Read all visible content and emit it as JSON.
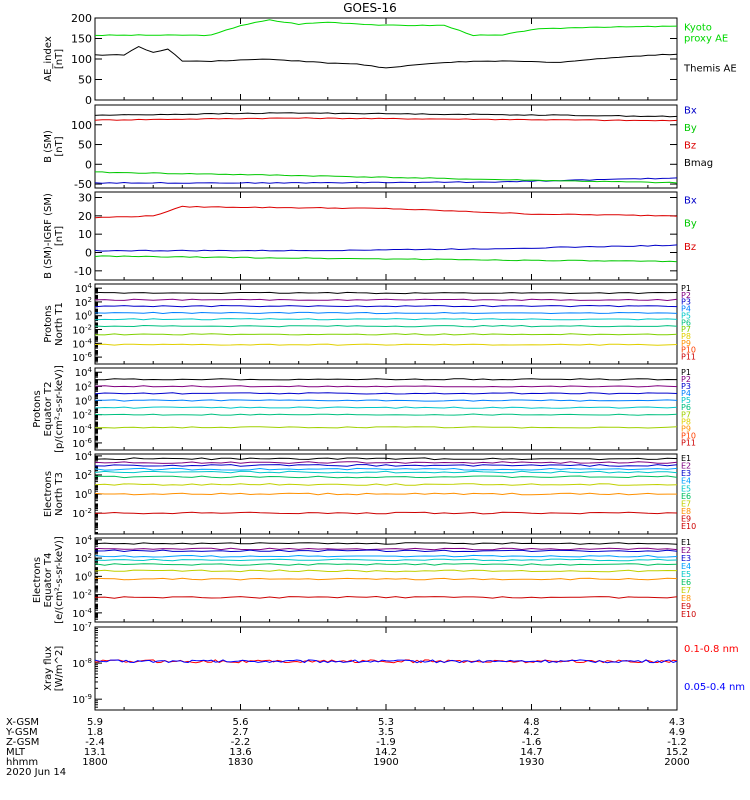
{
  "title": "GOES-16",
  "chart_data": [
    {
      "type": "line",
      "ylabel": [
        "AE_index",
        "[nT]"
      ],
      "ylim": [
        0,
        200
      ],
      "yticks": [
        "0",
        "50",
        "100",
        "150",
        "200"
      ],
      "series": [
        {
          "name": "Kyoto proxy AE",
          "label_lines": [
            "Kyoto",
            "proxy AE"
          ],
          "color": "#00d800",
          "x": [
            0,
            12,
            24,
            30,
            36,
            42,
            48,
            60,
            72,
            78,
            84,
            90,
            102,
            108,
            120
          ],
          "values": [
            158,
            158,
            158,
            182,
            195,
            185,
            190,
            182,
            182,
            158,
            158,
            172,
            178,
            178,
            180
          ]
        },
        {
          "name": "Themis AE",
          "label_lines": [
            "Themis AE"
          ],
          "color": "#000000",
          "x": [
            0,
            6,
            9,
            12,
            15,
            18,
            24,
            36,
            48,
            54,
            60,
            72,
            84,
            96,
            108,
            120
          ],
          "values": [
            110,
            110,
            130,
            115,
            125,
            95,
            95,
            100,
            90,
            88,
            78,
            92,
            95,
            92,
            105,
            112
          ]
        }
      ]
    },
    {
      "type": "line",
      "ylabel": [
        "B (SM)",
        "[nT]"
      ],
      "ylim": [
        -60,
        150
      ],
      "yticks": [
        "-50",
        "0",
        "50",
        "100"
      ],
      "ytick_values": [
        -50,
        0,
        50,
        100
      ],
      "series": [
        {
          "name": "Bx",
          "color": "#0000c8",
          "x": [
            0,
            40,
            80,
            120
          ],
          "values": [
            -47,
            -47,
            -45,
            -35
          ]
        },
        {
          "name": "By",
          "color": "#00c800",
          "x": [
            0,
            40,
            80,
            120
          ],
          "values": [
            -20,
            -28,
            -38,
            -47
          ]
        },
        {
          "name": "Bz",
          "color": "#dc0000",
          "x": [
            0,
            40,
            80,
            120
          ],
          "values": [
            112,
            117,
            114,
            110
          ]
        },
        {
          "name": "Bmag",
          "color": "#000000",
          "x": [
            0,
            40,
            80,
            120
          ],
          "values": [
            124,
            130,
            126,
            121
          ]
        }
      ]
    },
    {
      "type": "line",
      "ylabel": [
        "B (SM)-IGRF (SM)",
        "[nT]"
      ],
      "ylim": [
        -15,
        33
      ],
      "yticks": [
        "-10",
        "0",
        "10",
        "20",
        "30"
      ],
      "ytick_values": [
        -10,
        0,
        10,
        20,
        30
      ],
      "series": [
        {
          "name": "Bx",
          "color": "#0000c8",
          "x": [
            0,
            40,
            80,
            120
          ],
          "values": [
            1,
            1,
            2,
            4
          ]
        },
        {
          "name": "By",
          "color": "#00c800",
          "x": [
            0,
            40,
            80,
            120
          ],
          "values": [
            -2,
            -3,
            -4,
            -5
          ]
        },
        {
          "name": "Bz",
          "color": "#dc0000",
          "x": [
            0,
            12,
            18,
            60,
            90,
            120
          ],
          "values": [
            19,
            20,
            25,
            24,
            21,
            20
          ]
        }
      ]
    },
    {
      "type": "line",
      "ylabel": [
        "Protons",
        "North T1"
      ],
      "yticks": [
        "10^4",
        "10^2",
        "10^0",
        "10^-2",
        "10^-4",
        "10^-6"
      ],
      "log_range": [
        -7,
        4.6
      ],
      "channels": [
        {
          "name": "P1",
          "color": "#000000",
          "log_flux": 3.3
        },
        {
          "name": "P2",
          "color": "#800080",
          "log_flux": 2.3
        },
        {
          "name": "P3",
          "color": "#0000cc",
          "log_flux": 1.4
        },
        {
          "name": "P4",
          "color": "#0080ff",
          "log_flux": 0.4
        },
        {
          "name": "P5",
          "color": "#00c8c8",
          "log_flux": -0.5
        },
        {
          "name": "P6",
          "color": "#00c080",
          "log_flux": -1.5
        },
        {
          "name": "P7",
          "color": "#80d000",
          "log_flux": -2.7
        },
        {
          "name": "P8",
          "color": "#e0d000",
          "log_flux": -4.2
        },
        {
          "name": "P9",
          "color": "#ff9000",
          "log_flux": null
        },
        {
          "name": "P10",
          "color": "#ff4000",
          "log_flux": null
        },
        {
          "name": "P11",
          "color": "#cc0000",
          "log_flux": null
        }
      ]
    },
    {
      "type": "line",
      "ylabel": [
        "Protons",
        "Equator T2",
        "[p/(cm²-s-sr-keV)]"
      ],
      "yticks": [
        "10^4",
        "10^2",
        "10^0",
        "10^-2",
        "10^-4",
        "10^-6"
      ],
      "log_range": [
        -7,
        4.6
      ],
      "channels": [
        {
          "name": "P1",
          "color": "#000000",
          "log_flux": 3.0
        },
        {
          "name": "P2",
          "color": "#800080",
          "log_flux": 2.0
        },
        {
          "name": "P3",
          "color": "#0000cc",
          "log_flux": 1.0
        },
        {
          "name": "P4",
          "color": "#0080ff",
          "log_flux": 0.0
        },
        {
          "name": "P5",
          "color": "#00c8c8",
          "log_flux": -1.0
        },
        {
          "name": "P6",
          "color": "#00c080",
          "log_flux": -2.0
        },
        {
          "name": "P7",
          "color": "#a0d000",
          "log_flux": -3.8
        },
        {
          "name": "P8",
          "color": "#e0d000",
          "log_flux": null
        },
        {
          "name": "P9",
          "color": "#ff9000",
          "log_flux": null
        },
        {
          "name": "P10",
          "color": "#ff4000",
          "log_flux": null
        },
        {
          "name": "P11",
          "color": "#cc0000",
          "log_flux": null
        }
      ]
    },
    {
      "type": "line",
      "ylabel": [
        "Electrons",
        "North T3"
      ],
      "yticks": [
        "10^4",
        "10^2",
        "10^0",
        "10^-2"
      ],
      "log_range": [
        -4.2,
        4.2
      ],
      "channels": [
        {
          "name": "E1",
          "color": "#000000",
          "log_flux": 3.7
        },
        {
          "name": "E2",
          "color": "#800080",
          "log_flux": 3.3
        },
        {
          "name": "E3",
          "color": "#0000cc",
          "log_flux": 3.0
        },
        {
          "name": "E4",
          "color": "#00a0ff",
          "log_flux": 2.6
        },
        {
          "name": "E5",
          "color": "#00c8c8",
          "log_flux": 2.3
        },
        {
          "name": "E6",
          "color": "#00c060",
          "log_flux": 1.8
        },
        {
          "name": "E7",
          "color": "#c0d000",
          "log_flux": 1.0
        },
        {
          "name": "E8",
          "color": "#ff9000",
          "log_flux": 0.0
        },
        {
          "name": "E9",
          "color": "#cc0000",
          "log_flux": -2.0
        },
        {
          "name": "E10",
          "color": "#cc0000",
          "log_flux": null
        }
      ]
    },
    {
      "type": "line",
      "ylabel": [
        "Electrons",
        "Equator T4",
        "[e/(cm²-s-sr-keV)]"
      ],
      "yticks": [
        "10^4",
        "10^2",
        "10^0",
        "10^-2",
        "10^-4"
      ],
      "log_range": [
        -5,
        4.2
      ],
      "channels": [
        {
          "name": "E1",
          "color": "#000000",
          "log_flux": 3.6
        },
        {
          "name": "E2",
          "color": "#800080",
          "log_flux": 3.0
        },
        {
          "name": "E3",
          "color": "#0000cc",
          "log_flux": 2.8
        },
        {
          "name": "E4",
          "color": "#00a0ff",
          "log_flux": 2.2
        },
        {
          "name": "E5",
          "color": "#00c8c8",
          "log_flux": 1.8
        },
        {
          "name": "E6",
          "color": "#00c060",
          "log_flux": 1.3
        },
        {
          "name": "E7",
          "color": "#c0d000",
          "log_flux": 0.6
        },
        {
          "name": "E8",
          "color": "#ff9000",
          "log_flux": -0.3
        },
        {
          "name": "E9",
          "color": "#cc0000",
          "log_flux": -2.3
        },
        {
          "name": "E10",
          "color": "#cc0000",
          "log_flux": null
        }
      ]
    },
    {
      "type": "line",
      "ylabel": [
        "Xray flux",
        "[W/m^2]"
      ],
      "yticks": [
        "10^-7",
        "10^-8",
        "10^-9"
      ],
      "log_range": [
        -9.3,
        -7
      ],
      "series": [
        {
          "name": "0.1-0.8 nm",
          "color": "#ff0000",
          "log_flux": -7.95
        },
        {
          "name": "0.05-0.4 nm",
          "color": "#0000ff",
          "log_flux": -7.95
        }
      ]
    }
  ],
  "x_axis": {
    "range_minutes": [
      0,
      120
    ],
    "tick_minutes": [
      0,
      30,
      60,
      90,
      120
    ],
    "rows": [
      {
        "label": "X-GSM",
        "values": [
          "5.9",
          "5.6",
          "5.3",
          "4.8",
          "4.3"
        ]
      },
      {
        "label": "Y-GSM",
        "values": [
          "1.8",
          "2.7",
          "3.5",
          "4.2",
          "4.9"
        ]
      },
      {
        "label": "Z-GSM",
        "values": [
          "-2.4",
          "-2.2",
          "-1.9",
          "-1.6",
          "-1.2"
        ]
      },
      {
        "label": "MLT",
        "values": [
          "13.1",
          "13.6",
          "14.2",
          "14.7",
          "15.2"
        ]
      },
      {
        "label": "hhmm",
        "values": [
          "1800",
          "1830",
          "1900",
          "1930",
          "2000"
        ]
      }
    ],
    "date": "2020 Jun 14"
  }
}
